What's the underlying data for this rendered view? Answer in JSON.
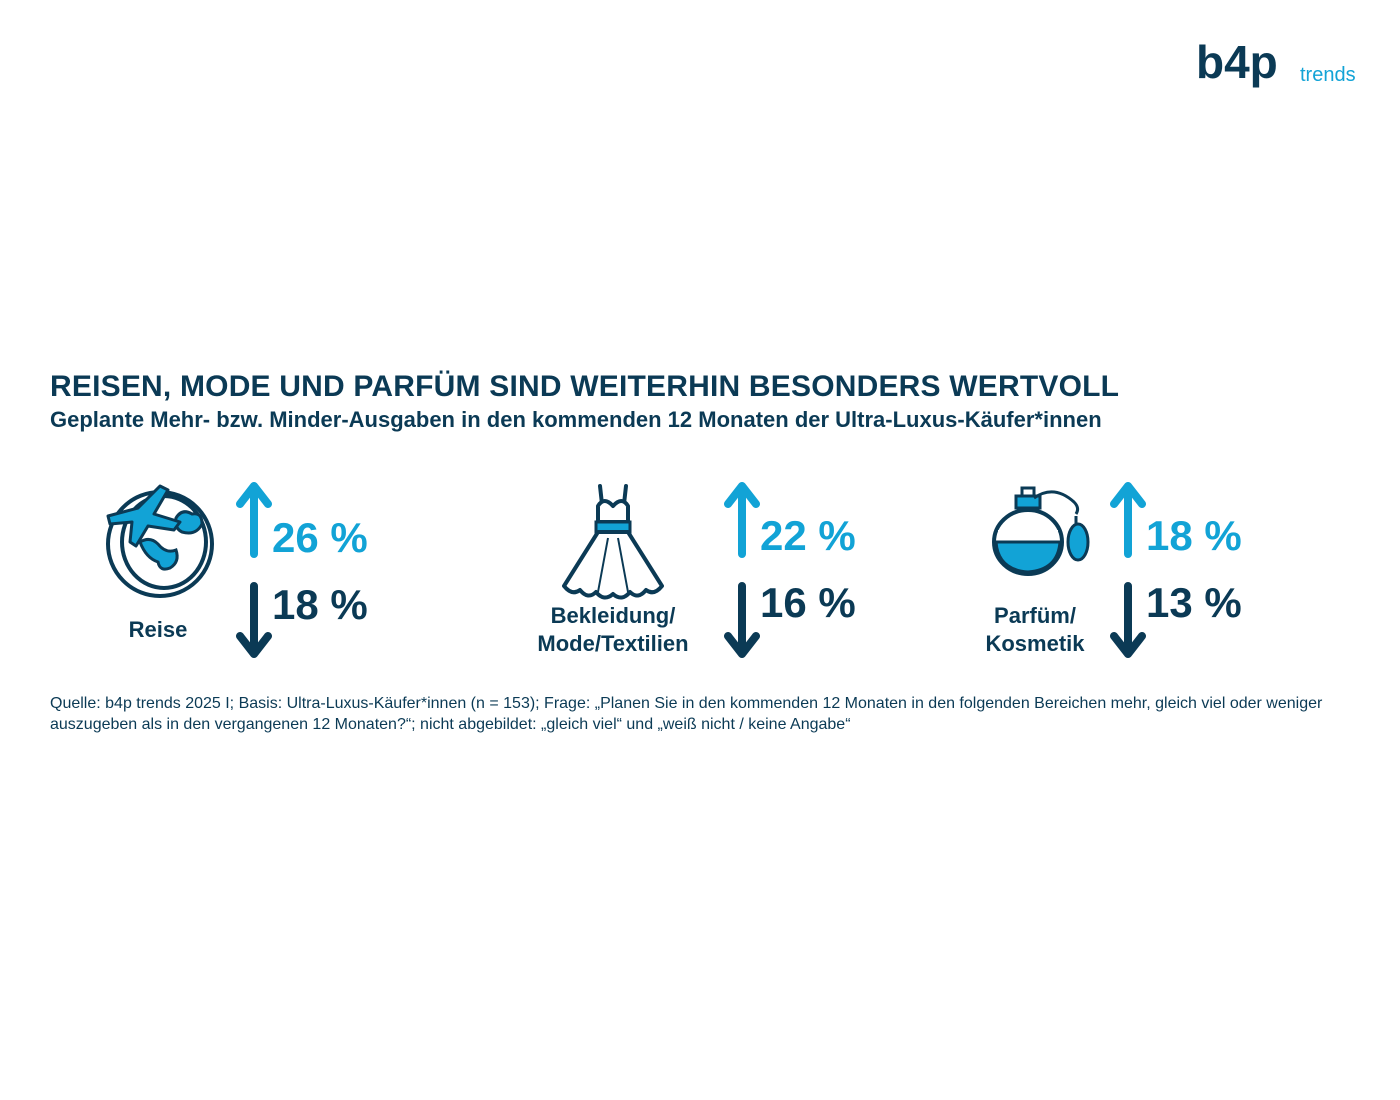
{
  "logo": {
    "brand": "b4p",
    "suffix": "trends"
  },
  "header": {
    "title": "REISEN, MODE UND PARFÜM SIND WEITERHIN BESONDERS WERTVOLL",
    "subtitle": "Geplante Mehr- bzw. Minder-Ausgaben in den kommenden 12 Monaten der Ultra-Luxus-Käufer*innen"
  },
  "colors": {
    "up": "#12a3d6",
    "down": "#0b3a55",
    "text": "#0b3a55"
  },
  "chart_data": {
    "type": "table",
    "columns": [
      "Kategorie",
      "Mehr-Ausgaben (%)",
      "Minder-Ausgaben (%)"
    ],
    "categories": [
      {
        "label_lines": [
          "Reise"
        ],
        "icon": "globe-plane-icon",
        "more": 26,
        "less": 18,
        "more_label": "26 %",
        "less_label": "18 %"
      },
      {
        "label_lines": [
          "Bekleidung/",
          "Mode/Textilien"
        ],
        "icon": "dress-icon",
        "more": 22,
        "less": 16,
        "more_label": "22 %",
        "less_label": "16 %"
      },
      {
        "label_lines": [
          "Parfüm/",
          "Kosmetik"
        ],
        "icon": "perfume-bottle-icon",
        "more": 18,
        "less": 13,
        "more_label": "18 %",
        "less_label": "13 %"
      }
    ]
  },
  "footer": {
    "source": "Quelle: b4p trends 2025 I; Basis: Ultra-Luxus-Käufer*innen (n = 153); Frage: „Planen Sie in den kommenden 12 Monaten in den folgenden Bereichen mehr, gleich viel oder weniger auszugeben als in den vergangenen 12 Monaten?“; nicht abgebildet: „gleich viel“ und „weiß nicht / keine Angabe“"
  }
}
